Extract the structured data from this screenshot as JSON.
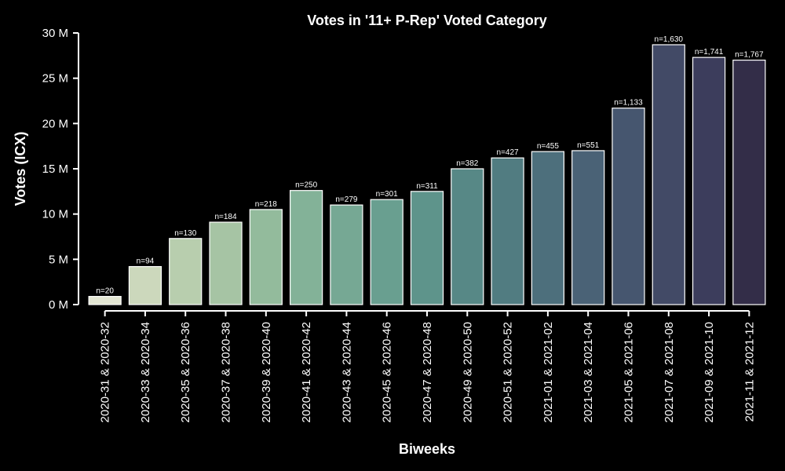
{
  "colors": {
    "background": "#000000",
    "text": "#ffffff",
    "bar_edge": "#ffffff"
  },
  "chart_data": {
    "type": "bar",
    "title": "Votes in '11+ P-Rep' Voted Category",
    "xlabel": "Biweeks",
    "ylabel": "Votes (ICX)",
    "ylim": [
      0,
      30000000
    ],
    "yticks": [
      0,
      5000000,
      10000000,
      15000000,
      20000000,
      25000000,
      30000000
    ],
    "ytick_labels": [
      "0 M",
      "5 M",
      "10 M",
      "15 M",
      "20 M",
      "25 M",
      "30 M"
    ],
    "grid": false,
    "categories": [
      "2020-31 & 2020-32",
      "2020-33 & 2020-34",
      "2020-35 & 2020-36",
      "2020-37 & 2020-38",
      "2020-39 & 2020-40",
      "2020-41 & 2020-42",
      "2020-43 & 2020-44",
      "2020-45 & 2020-46",
      "2020-47 & 2020-48",
      "2020-49 & 2020-50",
      "2020-51 & 2020-52",
      "2021-01 & 2021-02",
      "2021-03 & 2021-04",
      "2021-05 & 2021-06",
      "2021-07 & 2021-08",
      "2021-09 & 2021-10",
      "2021-11 & 2021-12"
    ],
    "values": [
      900000,
      4200000,
      7300000,
      9100000,
      10500000,
      12600000,
      11000000,
      11600000,
      12500000,
      15000000,
      16200000,
      16900000,
      17000000,
      21700000,
      28700000,
      27300000,
      27000000
    ],
    "bar_labels": [
      "n=20",
      "n=94",
      "n=130",
      "n=184",
      "n=218",
      "n=250",
      "n=279",
      "n=301",
      "n=311",
      "n=382",
      "n=427",
      "n=455",
      "n=551",
      "n=1,133",
      "n=1,630",
      "n=1,741",
      "n=1,767"
    ],
    "bar_colors": [
      "#e3e6d3",
      "#ccd8bc",
      "#b8ceae",
      "#a6c4a4",
      "#93bb9c",
      "#83b298",
      "#76a894",
      "#699f90",
      "#5e948b",
      "#578886",
      "#517c81",
      "#4d6f7c",
      "#4a6276",
      "#46566f",
      "#424a66",
      "#3c3d5c",
      "#332d48"
    ]
  }
}
